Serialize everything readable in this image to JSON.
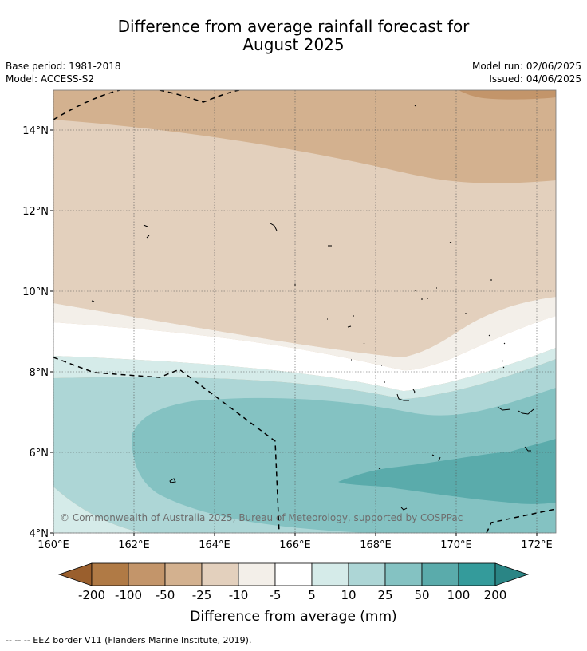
{
  "title": {
    "line1": "Difference from average rainfall forecast for",
    "line2": "August 2025"
  },
  "meta": {
    "base_period": "Base period: 1981-2018",
    "model": "Model: ACCESS-S2",
    "model_run": "Model run: 02/06/2025",
    "issued": "Issued: 04/06/2025"
  },
  "map": {
    "copyright": "© Commonwealth of Australia 2025, Bureau of Meteorology, supported by COSPPac",
    "lon_labels": [
      "160°E",
      "162°E",
      "164°E",
      "166°E",
      "168°E",
      "170°E",
      "172°E"
    ],
    "lat_labels": [
      "14°N",
      "12°N",
      "10°N",
      "8°N",
      "6°N",
      "4°N"
    ],
    "lon_range": [
      160,
      172.5
    ],
    "lat_range": [
      4,
      15
    ],
    "grid": true
  },
  "colorbar": {
    "ticks": [
      "-200",
      "-100",
      "-50",
      "-25",
      "-10",
      "-5",
      "5",
      "10",
      "25",
      "50",
      "100",
      "200"
    ],
    "colors": [
      "#9a5f2d",
      "#b07a45",
      "#c3956a",
      "#d3b18f",
      "#e3d0bd",
      "#f3efe9",
      "#ffffff",
      "#d5ebe9",
      "#add6d6",
      "#84c2c2",
      "#5aabab",
      "#349b9b",
      "#2a8585"
    ],
    "label": "Difference from average (mm)"
  },
  "footer": "--  --  -- EEZ border V11 (Flanders Marine Institute, 2019)."
}
